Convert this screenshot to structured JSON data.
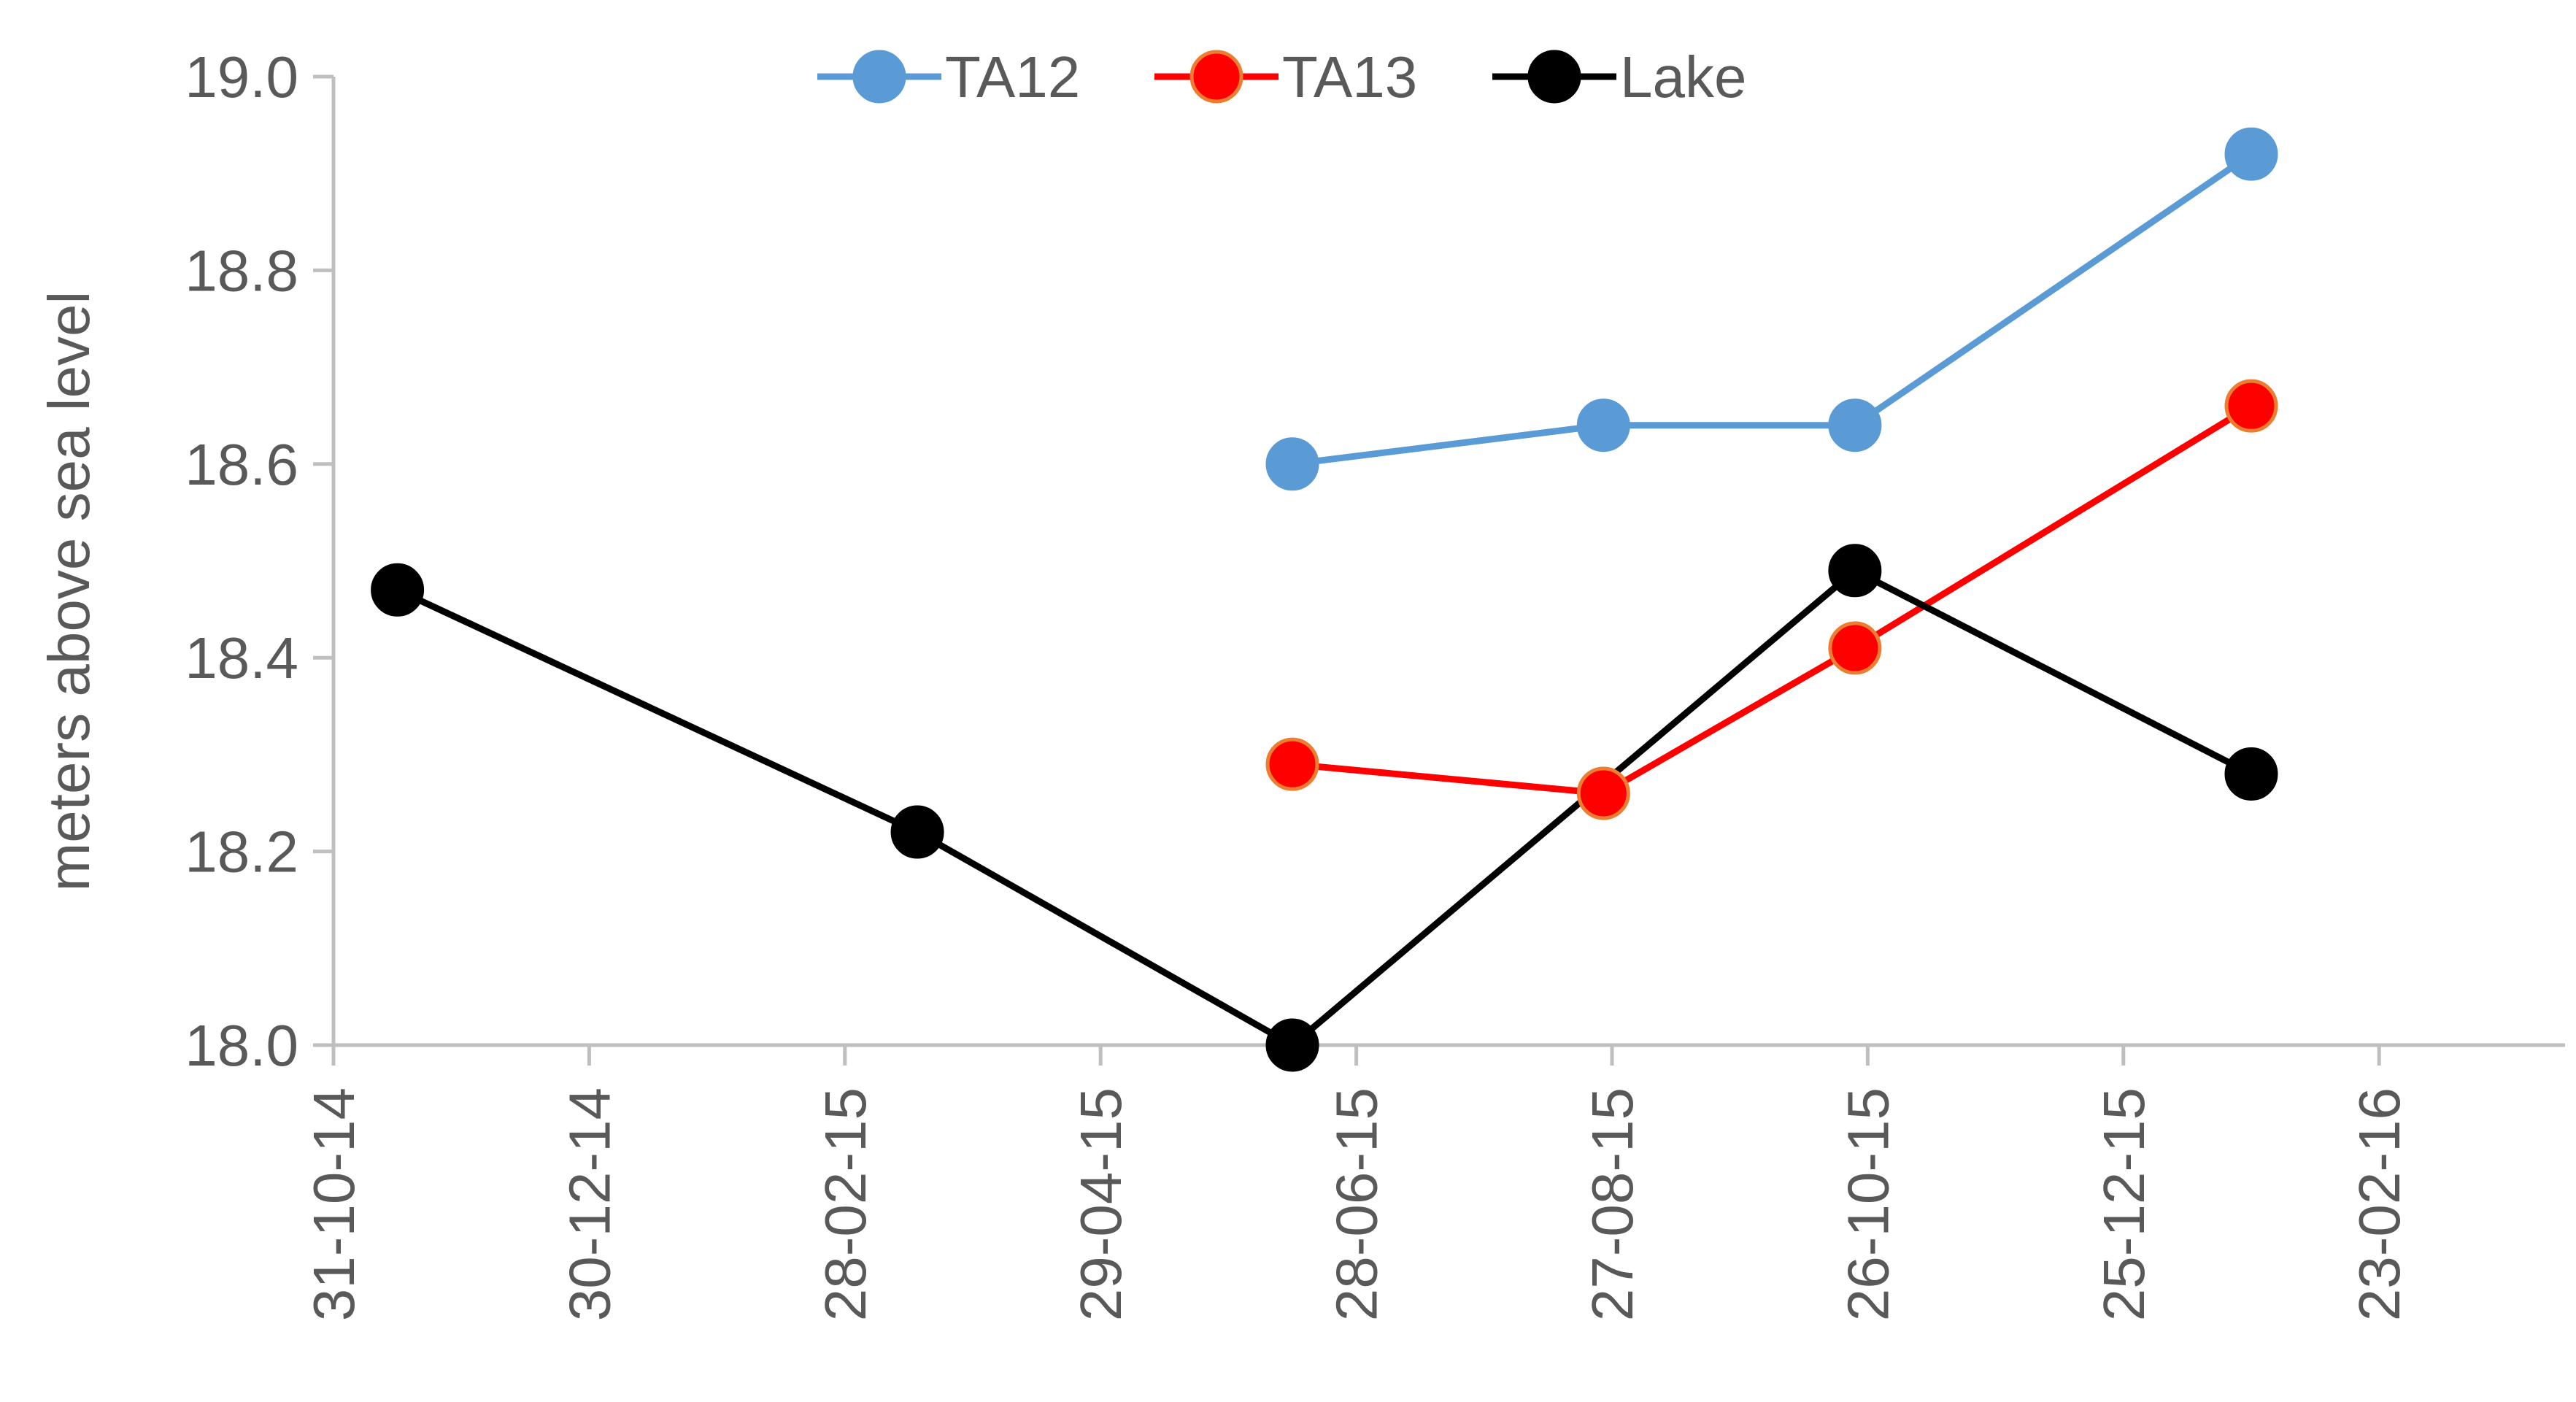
{
  "chart_data": {
    "type": "line",
    "title": "",
    "xlabel": "",
    "ylabel": "meters above sea level",
    "ylim": [
      18.0,
      19.0
    ],
    "yticks": [
      "18.0",
      "18.2",
      "18.4",
      "18.6",
      "18.8",
      "19.0"
    ],
    "xlim": [
      "2014-10-31",
      "2016-04-23"
    ],
    "xticks": [
      "31-10-14",
      "30-12-14",
      "28-02-15",
      "29-04-15",
      "28-06-15",
      "27-08-15",
      "26-10-15",
      "25-12-15",
      "23-02-16"
    ],
    "grid": false,
    "legend_position": "top",
    "series": [
      {
        "name": "TA12",
        "color": "#5b9bd5",
        "marker_edge": "#5b9bd5",
        "points": [
          {
            "x": "2015-06-13",
            "y": 18.6
          },
          {
            "x": "2015-08-25",
            "y": 18.64
          },
          {
            "x": "2015-10-23",
            "y": 18.64
          },
          {
            "x": "2016-01-24",
            "y": 18.92
          }
        ]
      },
      {
        "name": "TA13",
        "color": "#ff0000",
        "marker_edge": "#ed7d31",
        "points": [
          {
            "x": "2015-06-13",
            "y": 18.29
          },
          {
            "x": "2015-08-25",
            "y": 18.26
          },
          {
            "x": "2015-10-23",
            "y": 18.41
          },
          {
            "x": "2016-01-24",
            "y": 18.66
          }
        ]
      },
      {
        "name": "Lake",
        "color": "#000000",
        "marker_edge": "#000000",
        "points": [
          {
            "x": "2014-11-15",
            "y": 18.47
          },
          {
            "x": "2015-03-17",
            "y": 18.22
          },
          {
            "x": "2015-06-13",
            "y": 18.0
          },
          {
            "x": "2015-10-23",
            "y": 18.49
          },
          {
            "x": "2016-01-24",
            "y": 18.28
          }
        ]
      }
    ]
  }
}
